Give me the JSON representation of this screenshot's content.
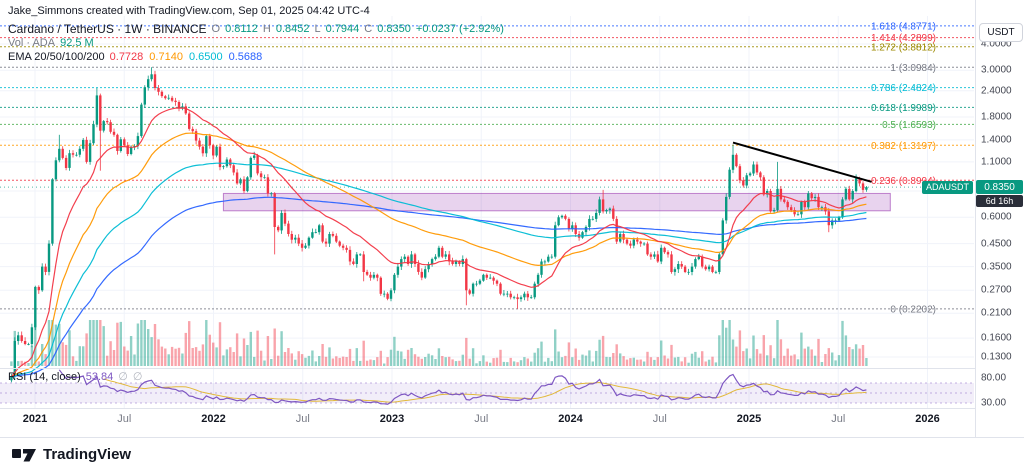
{
  "attribution": "Jake_Simmons created with TradingView.com, Sep 01, 2025 04:42 UTC-4",
  "header": {
    "symbol_title": "Cardano / TetherUS · 1W · BINANCE",
    "ohlc": {
      "o_label": "O",
      "o": "0.8112",
      "h_label": "H",
      "h": "0.8452",
      "l_label": "L",
      "l": "0.7944",
      "c_label": "C",
      "c": "0.8350",
      "change": "+0.0237 (+2.92%)"
    },
    "volume_label": "Vol · ADA",
    "volume_value": "92.5 M",
    "ema_label": "EMA 20/50/100/200",
    "ema_values": [
      {
        "value": "0.7728",
        "color": "#f23645"
      },
      {
        "value": "0.7140",
        "color": "#ff9800"
      },
      {
        "value": "0.6500",
        "color": "#00bcd4"
      },
      {
        "value": "0.5688",
        "color": "#2962ff"
      }
    ]
  },
  "rsi_legend": {
    "title": "RSI (14, close)",
    "value": "53.84",
    "value_color": "#7e57c2"
  },
  "price_axis": {
    "currency": "USDT",
    "ticks": [
      {
        "label": "4.0000",
        "price": 4.0
      },
      {
        "label": "3.0000",
        "price": 3.0
      },
      {
        "label": "2.4000",
        "price": 2.4
      },
      {
        "label": "1.8000",
        "price": 1.8
      },
      {
        "label": "1.4000",
        "price": 1.4
      },
      {
        "label": "1.1000",
        "price": 1.1
      },
      {
        "label": "0.8000",
        "price": 0.8
      },
      {
        "label": "0.6000",
        "price": 0.6
      },
      {
        "label": "0.4500",
        "price": 0.45
      },
      {
        "label": "0.3500",
        "price": 0.35
      },
      {
        "label": "0.2700",
        "price": 0.27
      },
      {
        "label": "0.2100",
        "price": 0.21
      },
      {
        "label": "0.1600",
        "price": 0.16
      },
      {
        "label": "0.1300",
        "price": 0.13
      }
    ],
    "rsi_ticks": [
      {
        "label": "80.00",
        "value": 80
      },
      {
        "label": "30.00",
        "value": 30
      }
    ],
    "price_badge": {
      "symbol": "ADAUSDT",
      "price": "0.8350"
    },
    "countdown": "6d 16h"
  },
  "time_axis": {
    "labels": [
      {
        "text": "2021",
        "major": true
      },
      {
        "text": "Jul",
        "major": false
      },
      {
        "text": "2022",
        "major": true
      },
      {
        "text": "Jul",
        "major": false
      },
      {
        "text": "2023",
        "major": true
      },
      {
        "text": "Jul",
        "major": false
      },
      {
        "text": "2024",
        "major": true
      },
      {
        "text": "Jul",
        "major": false
      },
      {
        "text": "2025",
        "major": true
      },
      {
        "text": "Jul",
        "major": false
      },
      {
        "text": "2026",
        "major": true
      }
    ]
  },
  "footer": {
    "brand": "TradingView"
  },
  "chart_data": {
    "type": "candlestick",
    "title": "Cardano / TetherUS 1W BINANCE with EMA 20/50/100/200, Volume, RSI(14) and Fibonacci retracement 0.2202 - 3.0984",
    "timeframe": "1 week per candle",
    "y_axis": {
      "scale": "log",
      "range": [
        0.118,
        4.6
      ],
      "currency": "USDT"
    },
    "x_axis": {
      "start": "2020-11-16",
      "end": "2025-09-01",
      "interval_weeks": 1
    },
    "colors": {
      "up": "#089981",
      "down": "#f23645"
    },
    "closes": [
      0.105,
      0.155,
      0.165,
      0.155,
      0.15,
      0.15,
      0.18,
      0.28,
      0.27,
      0.35,
      0.33,
      0.45,
      0.91,
      1.12,
      1.27,
      1.15,
      1.03,
      1.21,
      1.19,
      1.19,
      1.27,
      1.4,
      1.1,
      1.35,
      1.66,
      2.28,
      1.55,
      1.72,
      1.7,
      1.53,
      1.48,
      1.24,
      1.41,
      1.32,
      1.2,
      1.29,
      1.31,
      1.46,
      2.06,
      2.49,
      2.72,
      2.87,
      2.47,
      2.37,
      2.26,
      2.21,
      2.22,
      2.15,
      2.12,
      1.98,
      2.02,
      1.87,
      1.58,
      1.54,
      1.39,
      1.3,
      1.21,
      1.46,
      1.32,
      1.18,
      1.3,
      1.04,
      1.05,
      1.13,
      1.06,
      0.98,
      0.87,
      0.91,
      0.8,
      0.93,
      1.15,
      1.18,
      0.97,
      0.93,
      0.93,
      0.78,
      0.78,
      0.54,
      0.52,
      0.63,
      0.56,
      0.5,
      0.47,
      0.48,
      0.45,
      0.43,
      0.44,
      0.48,
      0.51,
      0.51,
      0.55,
      0.46,
      0.45,
      0.5,
      0.49,
      0.46,
      0.44,
      0.43,
      0.42,
      0.37,
      0.36,
      0.4,
      0.4,
      0.33,
      0.32,
      0.31,
      0.32,
      0.31,
      0.26,
      0.26,
      0.246,
      0.27,
      0.32,
      0.35,
      0.38,
      0.39,
      0.36,
      0.4,
      0.36,
      0.33,
      0.31,
      0.34,
      0.36,
      0.38,
      0.39,
      0.43,
      0.39,
      0.4,
      0.37,
      0.36,
      0.37,
      0.36,
      0.38,
      0.27,
      0.26,
      0.29,
      0.29,
      0.3,
      0.32,
      0.31,
      0.31,
      0.3,
      0.29,
      0.26,
      0.26,
      0.26,
      0.25,
      0.25,
      0.245,
      0.25,
      0.26,
      0.25,
      0.25,
      0.29,
      0.32,
      0.37,
      0.37,
      0.39,
      0.39,
      0.55,
      0.6,
      0.61,
      0.59,
      0.53,
      0.55,
      0.5,
      0.48,
      0.51,
      0.54,
      0.59,
      0.59,
      0.63,
      0.73,
      0.64,
      0.65,
      0.66,
      0.59,
      0.46,
      0.5,
      0.47,
      0.45,
      0.44,
      0.47,
      0.46,
      0.45,
      0.45,
      0.4,
      0.39,
      0.4,
      0.37,
      0.43,
      0.41,
      0.4,
      0.33,
      0.34,
      0.36,
      0.35,
      0.33,
      0.33,
      0.35,
      0.38,
      0.39,
      0.35,
      0.34,
      0.35,
      0.33,
      0.33,
      0.4,
      0.58,
      0.75,
      1.01,
      1.19,
      1.05,
      0.9,
      0.85,
      0.95,
      0.97,
      1.07,
      0.98,
      0.93,
      0.77,
      0.8,
      0.64,
      0.65,
      0.82,
      0.73,
      0.71,
      0.67,
      0.65,
      0.62,
      0.62,
      0.71,
      0.67,
      0.78,
      0.74,
      0.75,
      0.67,
      0.67,
      0.64,
      0.55,
      0.58,
      0.58,
      0.6,
      0.73,
      0.82,
      0.73,
      0.8,
      0.92,
      0.87,
      0.81,
      0.835
    ],
    "spike_highs": {
      "14": 1.48,
      "25": 2.47,
      "41": 3.0984,
      "173": 0.81,
      "211": 1.33,
      "224": 1.1,
      "247": 0.96
    },
    "spike_lows": {
      "26": 1.0,
      "77": 0.4,
      "103": 0.298,
      "133": 0.229,
      "148": 0.2202,
      "239": 0.51
    },
    "last_candle": {
      "o": 0.8112,
      "h": 0.8452,
      "l": 0.7944,
      "c": 0.835
    },
    "emas": [
      {
        "period": 20,
        "color": "#f23645",
        "current": 0.7728
      },
      {
        "period": 50,
        "color": "#ff9800",
        "current": 0.714
      },
      {
        "period": 100,
        "color": "#00bcd4",
        "current": 0.65
      },
      {
        "period": 200,
        "color": "#2962ff",
        "current": 0.5688
      }
    ],
    "fib_levels": [
      {
        "level": "1.618",
        "price": 4.8771,
        "label": "1.618 (4.8771)",
        "color": "#2962ff"
      },
      {
        "level": "1.414",
        "price": 4.2899,
        "label": "1.414 (4.2899)",
        "color": "#f23645"
      },
      {
        "level": "1.272",
        "price": 3.8812,
        "label": "1.272 (3.8812)",
        "color": "#9c8a00"
      },
      {
        "level": "1",
        "price": 3.0984,
        "label": "1 (3.0984)",
        "color": "#787b86"
      },
      {
        "level": "0.786",
        "price": 2.4824,
        "label": "0.786 (2.4824)",
        "color": "#00bcd4"
      },
      {
        "level": "0.618",
        "price": 1.9989,
        "label": "0.618 (1.9989)",
        "color": "#089981"
      },
      {
        "level": "0.5",
        "price": 1.6593,
        "label": "0.5 (1.6593)",
        "color": "#4caf50"
      },
      {
        "level": "0.382",
        "price": 1.3197,
        "label": "0.382 (1.3197)",
        "color": "#ff9800"
      },
      {
        "level": "0.236",
        "price": 0.8994,
        "label": "0.236 (0.8994)",
        "color": "#f23645"
      },
      {
        "level": "0",
        "price": 0.2202,
        "label": "0 (0.2202)",
        "color": "#787b86"
      }
    ],
    "zone": {
      "price_top": 0.78,
      "price_bottom": 0.645,
      "start_index": 62,
      "end_index": 257,
      "color": "#8e24aa"
    },
    "trendline": {
      "x1_index": 211,
      "price1": 1.36,
      "x2_index": 251.5,
      "price2": 0.885,
      "color": "#000000"
    },
    "rsi": {
      "period": 14,
      "current": 53.84,
      "overbought": 70,
      "oversold": 30,
      "line_color": "#7e57c2",
      "ma_color": "#e2b93b",
      "band_fill": "rgba(126,87,194,0.10)"
    }
  }
}
